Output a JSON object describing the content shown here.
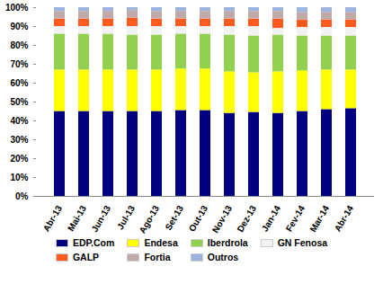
{
  "chart_data": {
    "type": "bar",
    "stacked": true,
    "legend": "bottom",
    "grid": false,
    "categories": [
      "Abr-13",
      "Mai-13",
      "Jun-13",
      "Jul-13",
      "Ago-13",
      "Set-13",
      "Out-13",
      "Nov-13",
      "Dez-13",
      "Jan-14",
      "Fev-14",
      "Mar-14",
      "Abr-14"
    ],
    "ylim": [
      0,
      100
    ],
    "yticks": [
      {
        "value": 0,
        "label": "0%"
      },
      {
        "value": 10,
        "label": "10%"
      },
      {
        "value": 20,
        "label": "20%"
      },
      {
        "value": 30,
        "label": "30%"
      },
      {
        "value": 40,
        "label": "40%"
      },
      {
        "value": 50,
        "label": "50%"
      },
      {
        "value": 60,
        "label": "60%"
      },
      {
        "value": 70,
        "label": "70%"
      },
      {
        "value": 80,
        "label": "80%"
      },
      {
        "value": 90,
        "label": "90%"
      },
      {
        "value": 100,
        "label": "100%"
      }
    ],
    "series": [
      {
        "name": "EDP.Com",
        "color": "#000080",
        "values": [
          45,
          45,
          45,
          45,
          45,
          45.5,
          45.5,
          44,
          44.5,
          44,
          45,
          46,
          46.5
        ]
      },
      {
        "name": "Endesa",
        "color": "#FFFF00",
        "values": [
          22,
          22,
          22,
          22,
          22,
          22,
          22,
          22,
          21,
          22,
          21.5,
          21,
          20.5
        ]
      },
      {
        "name": "Iberdrola",
        "color": "#92D050",
        "values": [
          19,
          19,
          19,
          18.5,
          18.5,
          18.5,
          18.5,
          19.5,
          19.5,
          19.5,
          18.5,
          18,
          18
        ]
      },
      {
        "name": "GN Fenosa",
        "color": "#F2F2F2",
        "values": [
          4,
          4,
          4,
          4.5,
          4.5,
          4,
          4,
          4.5,
          5,
          3.5,
          4.5,
          4.5,
          4.5
        ]
      },
      {
        "name": "GALP",
        "color": "#FF5A1E",
        "values": [
          4,
          4,
          4,
          4.5,
          4,
          4,
          4,
          4,
          4,
          5,
          4,
          4,
          4
        ]
      },
      {
        "name": "Fortia",
        "color": "#BFA9A9",
        "values": [
          4,
          4,
          4,
          4,
          4,
          4,
          4,
          4,
          4,
          4,
          4,
          4,
          4
        ]
      },
      {
        "name": "Outros",
        "color": "#9DB4E0",
        "values": [
          2,
          2,
          2,
          1.5,
          2,
          2,
          2,
          2,
          2,
          2,
          2.5,
          2.5,
          2.5
        ]
      }
    ]
  }
}
